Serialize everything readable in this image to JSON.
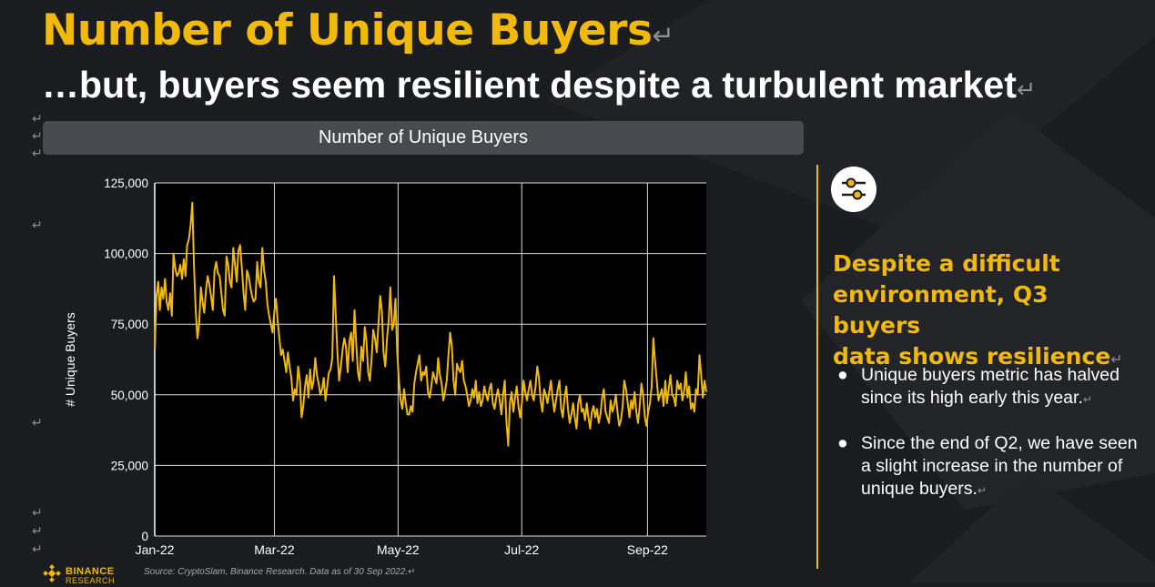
{
  "slide": {
    "title": "Number of Unique Buyers",
    "subtitle": "…but, buyers seem resilient despite a turbulent market",
    "return_mark": "↵",
    "source": "Source: CryptoSlam, Binance Research. Data as of 30 Sep 2022.",
    "logo_text": "BINANCE",
    "logo_sub": "RESEARCH"
  },
  "sidebar": {
    "icon": "sliders-icon",
    "heading_lines": [
      "Despite a difficult",
      "environment, Q3 buyers",
      "data shows resilience"
    ],
    "bullets": [
      "Unique buyers metric has halved since its high early this year.",
      "Since the end of Q2, we have seen a slight increase in the number of unique buyers."
    ]
  },
  "colors": {
    "accent": "#f0b90b",
    "background": "#1b1c1f",
    "plot_background": "#000000",
    "grid": "#d9d9d9"
  },
  "chart_data": {
    "type": "line",
    "title": "Number of Unique Buyers",
    "xlabel": "",
    "ylabel": "# Unique Buyers",
    "x_start": "2022-01-01",
    "x_end": "2022-09-30",
    "xlim": [
      "2022-01-01",
      "2022-09-30"
    ],
    "ylim": [
      0,
      125000
    ],
    "y_ticks": [
      0,
      25000,
      50000,
      75000,
      100000,
      125000
    ],
    "y_tick_labels": [
      "0",
      "25,000",
      "50,000",
      "75,000",
      "100,000",
      "125,000"
    ],
    "x_tick_dates": [
      "2022-01-01",
      "2022-03-01",
      "2022-05-01",
      "2022-07-01",
      "2022-09-01"
    ],
    "x_tick_labels": [
      "Jan-22",
      "Mar-22",
      "May-22",
      "Jul-22",
      "Sep-22"
    ],
    "grid": true,
    "legend": "none",
    "series": [
      {
        "values": [
          66000,
          85000,
          90000,
          80000,
          88000,
          84000,
          91000,
          83000,
          80000,
          86000,
          78000,
          100000,
          95000,
          92000,
          93000,
          96000,
          91000,
          98000,
          92000,
          103000,
          105000,
          110000,
          118000,
          95000,
          80000,
          70000,
          75000,
          88000,
          83000,
          79000,
          87000,
          92000,
          89000,
          85000,
          80000,
          94000,
          97000,
          93000,
          92000,
          86000,
          80000,
          78000,
          99000,
          96000,
          90000,
          88000,
          102000,
          96000,
          90000,
          101000,
          103000,
          95000,
          86000,
          80000,
          94000,
          92000,
          88000,
          85000,
          83000,
          84000,
          97000,
          90000,
          88000,
          102000,
          94000,
          90000,
          82000,
          78000,
          75000,
          72000,
          79000,
          84000,
          76000,
          70000,
          64000,
          66000,
          62000,
          58000,
          65000,
          60000,
          56000,
          48000,
          52000,
          50000,
          60000,
          55000,
          42000,
          46000,
          53000,
          57000,
          49000,
          59000,
          52000,
          55000,
          63000,
          57000,
          54000,
          50000,
          52000,
          56000,
          48000,
          53000,
          58000,
          59000,
          63000,
          92000,
          78000,
          65000,
          55000,
          60000,
          66000,
          70000,
          67000,
          58000,
          69000,
          72000,
          62000,
          80000,
          68000,
          58000,
          55000,
          67000,
          62000,
          74000,
          69000,
          58000,
          55000,
          63000,
          73000,
          70000,
          65000,
          75000,
          85000,
          80000,
          65000,
          60000,
          70000,
          76000,
          88000,
          73000,
          75000,
          84000,
          65000,
          55000,
          48000,
          45000,
          52000,
          47000,
          43000,
          43000,
          46000,
          44000,
          54000,
          58000,
          61000,
          64000,
          55000,
          58000,
          57000,
          60000,
          51000,
          49000,
          53000,
          58000,
          56000,
          54000,
          63000,
          57000,
          54000,
          48000,
          51000,
          55000,
          64000,
          72000,
          67000,
          55000,
          50000,
          61000,
          59000,
          58000,
          62000,
          55000,
          53000,
          50000,
          46000,
          48000,
          52000,
          49000,
          55000,
          47000,
          51000,
          46000,
          48000,
          53000,
          50000,
          48000,
          52000,
          54000,
          47000,
          45000,
          49000,
          52000,
          48000,
          43000,
          50000,
          55000,
          40000,
          32000,
          47000,
          51000,
          44000,
          49000,
          53000,
          46000,
          42000,
          47000,
          55000,
          51000,
          48000,
          52000,
          55000,
          50000,
          48000,
          53000,
          60000,
          56000,
          48000,
          44000,
          52000,
          50000,
          47000,
          51000,
          55000,
          49000,
          44000,
          48000,
          52000,
          55000,
          45000,
          42000,
          49000,
          53000,
          45000,
          40000,
          43000,
          47000,
          42000,
          38000,
          47000,
          50000,
          44000,
          45000,
          41000,
          47000,
          42000,
          38000,
          44000,
          46000,
          42000,
          45000,
          40000,
          43000,
          49000,
          52000,
          44000,
          42000,
          40000,
          48000,
          44000,
          46000,
          50000,
          44000,
          39000,
          41000,
          46000,
          55000,
          52000,
          47000,
          42000,
          48000,
          45000,
          51000,
          44000,
          40000,
          46000,
          54000,
          50000,
          42000,
          39000,
          44000,
          47000,
          53000,
          70000,
          62000,
          55000,
          48000,
          50000,
          52000,
          46000,
          55000,
          47000,
          52000,
          57000,
          50000,
          49000,
          46000,
          55000,
          52000,
          54000,
          48000,
          51000,
          58000,
          49000,
          53000,
          45000,
          47000,
          44000,
          52000,
          50000,
          64000,
          57000,
          49000,
          55000,
          51000
        ]
      }
    ]
  }
}
